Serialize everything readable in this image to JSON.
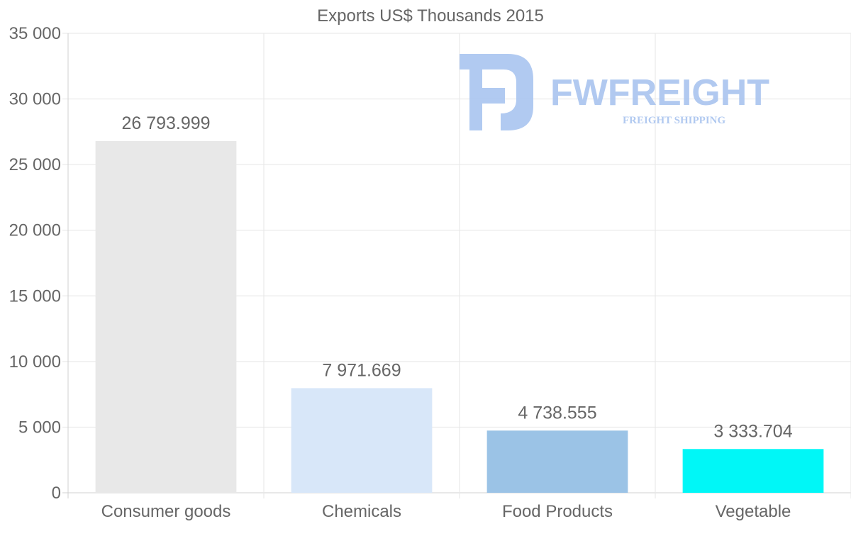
{
  "watermark": {
    "brand": "FWFREIGHT",
    "tagline": "FREIGHT SHIPPING",
    "color": "#a9c4ef"
  },
  "chart_data": {
    "type": "bar",
    "title": "Exports US$ Thousands 2015",
    "xlabel": "",
    "ylabel": "",
    "ylim": [
      0,
      35000
    ],
    "yticks": [
      0,
      5000,
      10000,
      15000,
      20000,
      25000,
      30000,
      35000
    ],
    "ytick_labels": [
      "0",
      "5 000",
      "10 000",
      "15 000",
      "20 000",
      "25 000",
      "30 000",
      "35 000"
    ],
    "categories": [
      "Consumer goods",
      "Chemicals",
      "Food Products",
      "Vegetable"
    ],
    "values": [
      26793.999,
      7971.669,
      4738.555,
      3333.704
    ],
    "value_labels": [
      "26 793.999",
      "7 971.669",
      "4 738.555",
      "3 333.704"
    ],
    "colors": [
      "#e8e8e8",
      "#d8e7f9",
      "#9bc3e6",
      "#00f7f7"
    ],
    "grid": true,
    "legend": "none"
  }
}
